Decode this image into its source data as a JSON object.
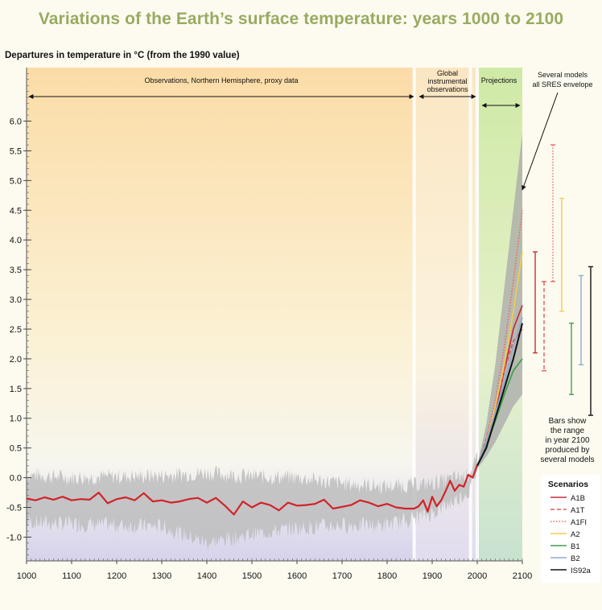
{
  "title": "Variations of the Earth’s surface temperature: years 1000 to 2100",
  "chart_data": {
    "type": "line",
    "title": "Variations of the Earth’s surface temperature: years 1000 to 2100",
    "ylabel": "Departures in temperature in °C (from the 1990 value)",
    "xlim": [
      1000,
      2100
    ],
    "ylim": [
      -1.4,
      6.9
    ],
    "grid": false,
    "x_ticks": [
      1000,
      1100,
      1200,
      1300,
      1400,
      1500,
      1600,
      1700,
      1800,
      1900,
      2000,
      2100
    ],
    "y_ticks": [
      -1.0,
      -0.5,
      0.0,
      0.5,
      1.0,
      1.5,
      2.0,
      2.5,
      3.0,
      3.5,
      4.0,
      4.5,
      5.0,
      5.5,
      6.0
    ],
    "y_tick_labels": [
      "-1.0",
      "-0.5",
      "0.0",
      "0.5",
      "1.0",
      "1.5",
      "2.0",
      "2.5",
      "3.0",
      "3.5",
      "4.0",
      "4.5",
      "5.0",
      "5.5",
      "6.0"
    ],
    "periods": [
      {
        "label": "Observations, Northern Hemisphere, proxy data",
        "start": 1000,
        "end": 1860
      },
      {
        "label": "Global instrumental observations",
        "start": 1860,
        "end": 2000
      },
      {
        "label": "Projections",
        "start": 2000,
        "end": 2100
      }
    ],
    "observed_series": {
      "x": [
        1000,
        1020,
        1040,
        1060,
        1080,
        1100,
        1120,
        1140,
        1160,
        1180,
        1200,
        1220,
        1240,
        1260,
        1280,
        1300,
        1320,
        1340,
        1360,
        1380,
        1400,
        1420,
        1440,
        1460,
        1480,
        1500,
        1520,
        1540,
        1560,
        1580,
        1600,
        1620,
        1640,
        1660,
        1680,
        1700,
        1720,
        1740,
        1760,
        1780,
        1800,
        1820,
        1840,
        1860,
        1870,
        1880,
        1890,
        1900,
        1910,
        1920,
        1930,
        1940,
        1950,
        1960,
        1970,
        1980,
        1990,
        2000
      ],
      "y": [
        -0.35,
        -0.38,
        -0.33,
        -0.37,
        -0.32,
        -0.38,
        -0.36,
        -0.37,
        -0.25,
        -0.43,
        -0.36,
        -0.33,
        -0.38,
        -0.26,
        -0.4,
        -0.38,
        -0.42,
        -0.4,
        -0.36,
        -0.34,
        -0.42,
        -0.34,
        -0.47,
        -0.62,
        -0.4,
        -0.5,
        -0.42,
        -0.46,
        -0.55,
        -0.42,
        -0.47,
        -0.46,
        -0.44,
        -0.37,
        -0.52,
        -0.49,
        -0.46,
        -0.38,
        -0.42,
        -0.48,
        -0.44,
        -0.5,
        -0.52,
        -0.52,
        -0.48,
        -0.38,
        -0.57,
        -0.32,
        -0.48,
        -0.38,
        -0.22,
        -0.05,
        -0.22,
        -0.12,
        -0.15,
        0.05,
        0.0,
        0.22
      ]
    },
    "uncertainty_band": {
      "x": [
        1000,
        1100,
        1200,
        1300,
        1400,
        1500,
        1600,
        1700,
        1800,
        1900,
        1980,
        2000
      ],
      "upper": [
        0.05,
        0.0,
        0.02,
        0.03,
        0.08,
        0.02,
        0.0,
        -0.1,
        -0.15,
        -0.1,
        0.05,
        0.3
      ],
      "lower": [
        -0.75,
        -0.78,
        -0.8,
        -0.82,
        -1.1,
        -0.95,
        -0.85,
        -0.8,
        -0.8,
        -0.6,
        -0.25,
        0.15
      ]
    },
    "projection_envelope": {
      "x": [
        2000,
        2020,
        2040,
        2060,
        2080,
        2100
      ],
      "upper": [
        0.2,
        0.9,
        1.9,
        3.2,
        4.5,
        5.8
      ],
      "lower": [
        0.15,
        0.35,
        0.6,
        0.9,
        1.2,
        1.4
      ]
    },
    "series": [
      {
        "name": "A1B",
        "color": "#c42f3a",
        "dash": "solid",
        "x": [
          2000,
          2020,
          2040,
          2060,
          2080,
          2100
        ],
        "values": [
          0.2,
          0.6,
          1.1,
          1.8,
          2.5,
          2.9
        ],
        "bar": [
          2.1,
          3.8
        ]
      },
      {
        "name": "A1T",
        "color": "#e05a5a",
        "dash": "dashed",
        "x": [
          2000,
          2020,
          2040,
          2060,
          2080,
          2100
        ],
        "values": [
          0.2,
          0.65,
          1.2,
          1.8,
          2.3,
          2.5
        ],
        "bar": [
          1.8,
          3.3
        ]
      },
      {
        "name": "A1FI",
        "color": "#e86a6a",
        "dash": "dotted",
        "x": [
          2000,
          2020,
          2040,
          2060,
          2080,
          2100
        ],
        "values": [
          0.2,
          0.65,
          1.3,
          2.2,
          3.3,
          4.5
        ],
        "bar": [
          3.3,
          5.6
        ]
      },
      {
        "name": "A2",
        "color": "#f2cc55",
        "dash": "solid",
        "x": [
          2000,
          2020,
          2040,
          2060,
          2080,
          2100
        ],
        "values": [
          0.2,
          0.6,
          1.2,
          1.9,
          2.8,
          3.8
        ],
        "bar": [
          2.8,
          4.7
        ]
      },
      {
        "name": "B1",
        "color": "#3ea04a",
        "dash": "solid",
        "x": [
          2000,
          2020,
          2040,
          2060,
          2080,
          2100
        ],
        "values": [
          0.2,
          0.55,
          0.95,
          1.4,
          1.8,
          2.0
        ],
        "bar": [
          1.4,
          2.6
        ]
      },
      {
        "name": "B2",
        "color": "#8faad6",
        "dash": "solid",
        "x": [
          2000,
          2020,
          2040,
          2060,
          2080,
          2100
        ],
        "values": [
          0.2,
          0.6,
          1.1,
          1.6,
          2.2,
          2.7
        ],
        "bar": [
          1.9,
          3.4
        ]
      },
      {
        "name": "IS92a",
        "color": "#111111",
        "dash": "solid",
        "x": [
          2000,
          2020,
          2040,
          2060,
          2080,
          2100
        ],
        "values": [
          0.2,
          0.5,
          1.0,
          1.5,
          2.0,
          2.6
        ],
        "bar": [
          1.05,
          3.55
        ]
      }
    ],
    "annotations": {
      "several_models": "Several models all SRES envelope",
      "bars_note": "Bars show the range in year 2100 produced by several models"
    },
    "legend": {
      "title": "Scenarios",
      "position": "bottom-right"
    }
  }
}
